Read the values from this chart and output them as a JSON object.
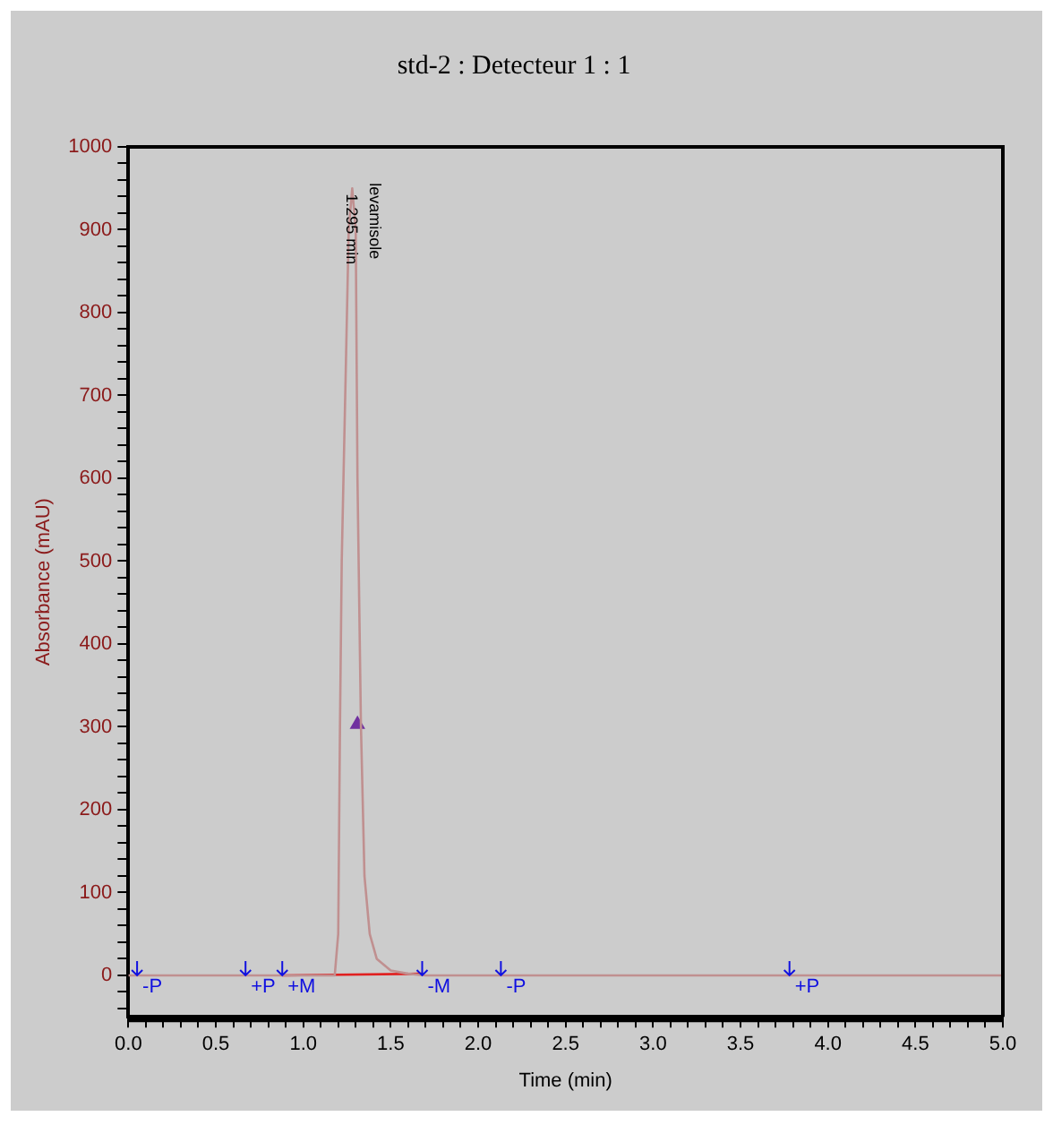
{
  "chart_data": {
    "type": "line",
    "title": "std-2 : Detecteur 1 : 1",
    "xlabel": "Time (min)",
    "ylabel": "Absorbance (mAU)",
    "x": [
      0,
      0.5,
      1.0,
      1.18,
      1.2,
      1.21,
      1.22,
      1.24,
      1.26,
      1.28,
      1.3,
      1.31,
      1.33,
      1.35,
      1.38,
      1.42,
      1.5,
      1.6,
      1.7,
      2.5,
      3.5,
      5.0
    ],
    "series": [
      {
        "color": "#c09090",
        "values": [
          0,
          0,
          0,
          0,
          50,
          300,
          500,
          700,
          900,
          950,
          900,
          600,
          300,
          120,
          50,
          20,
          6,
          2,
          0,
          0,
          0,
          0
        ]
      },
      {
        "type": "line",
        "color": "#e02020",
        "x": [
          0.88,
          1.68
        ],
        "values": [
          0,
          2
        ]
      },
      {
        "type": "scatter",
        "color": "#7030a0",
        "x": [
          1.31
        ],
        "values": [
          303
        ],
        "marker": "triangle"
      }
    ],
    "xlim": [
      0,
      5
    ],
    "ylim": [
      -50,
      1000
    ],
    "xticks": [
      {
        "value": 0,
        "label": "0.0"
      },
      {
        "value": 0.1,
        "label": null
      },
      {
        "value": 0.2,
        "label": null
      },
      {
        "value": 0.3,
        "label": null
      },
      {
        "value": 0.4,
        "label": null
      },
      {
        "value": 0.5,
        "label": "0.5"
      },
      {
        "value": 0.6,
        "label": null
      },
      {
        "value": 0.7,
        "label": null
      },
      {
        "value": 0.8,
        "label": null
      },
      {
        "value": 0.9,
        "label": null
      },
      {
        "value": 1,
        "label": "1.0"
      },
      {
        "value": 1.1,
        "label": null
      },
      {
        "value": 1.2,
        "label": null
      },
      {
        "value": 1.3,
        "label": null
      },
      {
        "value": 1.4,
        "label": null
      },
      {
        "value": 1.5,
        "label": "1.5"
      },
      {
        "value": 1.6,
        "label": null
      },
      {
        "value": 1.7,
        "label": null
      },
      {
        "value": 1.8,
        "label": null
      },
      {
        "value": 1.9,
        "label": null
      },
      {
        "value": 2,
        "label": "2.0"
      },
      {
        "value": 2.1,
        "label": null
      },
      {
        "value": 2.2,
        "label": null
      },
      {
        "value": 2.3,
        "label": null
      },
      {
        "value": 2.4,
        "label": null
      },
      {
        "value": 2.5,
        "label": "2.5"
      },
      {
        "value": 2.6,
        "label": null
      },
      {
        "value": 2.7,
        "label": null
      },
      {
        "value": 2.8,
        "label": null
      },
      {
        "value": 2.9,
        "label": null
      },
      {
        "value": 3,
        "label": "3.0"
      },
      {
        "value": 3.1,
        "label": null
      },
      {
        "value": 3.2,
        "label": null
      },
      {
        "value": 3.3,
        "label": null
      },
      {
        "value": 3.4,
        "label": null
      },
      {
        "value": 3.5,
        "label": "3.5"
      },
      {
        "value": 3.6,
        "label": null
      },
      {
        "value": 3.7,
        "label": null
      },
      {
        "value": 3.8,
        "label": null
      },
      {
        "value": 3.9,
        "label": null
      },
      {
        "value": 4,
        "label": "4.0"
      },
      {
        "value": 4.1,
        "label": null
      },
      {
        "value": 4.2,
        "label": null
      },
      {
        "value": 4.3,
        "label": null
      },
      {
        "value": 4.4,
        "label": null
      },
      {
        "value": 4.5,
        "label": "4.5"
      },
      {
        "value": 4.6,
        "label": null
      },
      {
        "value": 4.7,
        "label": null
      },
      {
        "value": 4.8,
        "label": null
      },
      {
        "value": 4.9,
        "label": null
      },
      {
        "value": 5,
        "label": "5.0"
      }
    ],
    "yticks": [
      {
        "value": -40,
        "label": null
      },
      {
        "value": -20,
        "label": null
      },
      0,
      {
        "value": 20,
        "label": null
      },
      {
        "value": 40,
        "label": null
      },
      {
        "value": 60,
        "label": null
      },
      {
        "value": 80,
        "label": null
      },
      100,
      {
        "value": 120,
        "label": null
      },
      {
        "value": 140,
        "label": null
      },
      {
        "value": 160,
        "label": null
      },
      {
        "value": 180,
        "label": null
      },
      200,
      {
        "value": 220,
        "label": null
      },
      {
        "value": 240,
        "label": null
      },
      {
        "value": 260,
        "label": null
      },
      {
        "value": 280,
        "label": null
      },
      300,
      {
        "value": 320,
        "label": null
      },
      {
        "value": 340,
        "label": null
      },
      {
        "value": 360,
        "label": null
      },
      {
        "value": 380,
        "label": null
      },
      400,
      {
        "value": 420,
        "label": null
      },
      {
        "value": 440,
        "label": null
      },
      {
        "value": 460,
        "label": null
      },
      {
        "value": 480,
        "label": null
      },
      500,
      {
        "value": 520,
        "label": null
      },
      {
        "value": 540,
        "label": null
      },
      {
        "value": 560,
        "label": null
      },
      {
        "value": 580,
        "label": null
      },
      600,
      {
        "value": 620,
        "label": null
      },
      {
        "value": 640,
        "label": null
      },
      {
        "value": 660,
        "label": null
      },
      {
        "value": 680,
        "label": null
      },
      700,
      {
        "value": 720,
        "label": null
      },
      {
        "value": 740,
        "label": null
      },
      {
        "value": 760,
        "label": null
      },
      {
        "value": 780,
        "label": null
      },
      800,
      {
        "value": 820,
        "label": null
      },
      {
        "value": 840,
        "label": null
      },
      {
        "value": 860,
        "label": null
      },
      {
        "value": 880,
        "label": null
      },
      900,
      {
        "value": 920,
        "label": null
      },
      {
        "value": 940,
        "label": null
      },
      {
        "value": 960,
        "label": null
      },
      {
        "value": 980,
        "label": null
      },
      1000
    ],
    "annotations": [
      {
        "text": "1.295 min",
        "x": 1.295,
        "y": 950
      },
      {
        "text": "levamisole",
        "x": 1.295,
        "y": 950
      },
      {
        "text": "-P",
        "x": 0.05,
        "y": 0
      },
      {
        "text": "+P",
        "x": 0.67,
        "y": 0
      },
      {
        "text": "+M",
        "x": 0.88,
        "y": 0
      },
      {
        "text": "-M",
        "x": 1.68,
        "y": 0
      },
      {
        "text": "-P",
        "x": 2.13,
        "y": 0
      },
      {
        "text": "+P",
        "x": 3.78,
        "y": 0
      }
    ],
    "grid": false,
    "legend": false,
    "marker": "none",
    "line_style": "solid"
  }
}
